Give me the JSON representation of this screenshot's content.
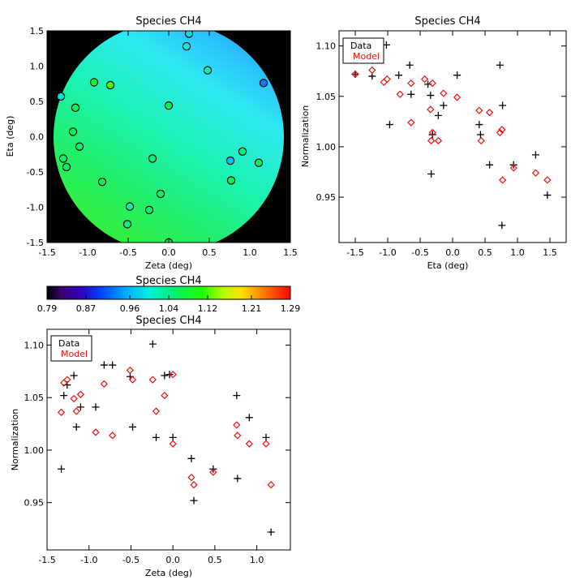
{
  "chart_data": [
    {
      "id": "map",
      "type": "heatmap",
      "title": "Species CH4",
      "xlabel": "Zeta (deg)",
      "ylabel": "Eta (deg)",
      "xlim": [
        -1.5,
        1.5
      ],
      "ylim": [
        -1.5,
        1.5
      ],
      "xticks": [
        -1.5,
        -1.0,
        -0.5,
        0.0,
        0.5,
        1.0,
        1.5
      ],
      "xtick_labels": [
        "-1.5",
        "-1.0",
        "-0.5",
        "0.0",
        "0.5",
        "1.0",
        "1.5"
      ],
      "yticks": [
        -1.5,
        -1.0,
        -0.5,
        0.0,
        0.5,
        1.0,
        1.5
      ],
      "ytick_labels": [
        "-1.5",
        "-1.0",
        "-0.5",
        "0.0",
        "0.5",
        "1.0",
        "1.5"
      ],
      "field_radius": 1.45,
      "background_color": "#000000",
      "points": [
        {
          "x": 0.25,
          "y": 1.46,
          "v": 0.99
        },
        {
          "x": 0.22,
          "y": 1.28,
          "v": 1.0
        },
        {
          "x": 1.17,
          "y": 0.76,
          "v": 0.93
        },
        {
          "x": 0.48,
          "y": 0.94,
          "v": 1.02
        },
        {
          "x": -1.33,
          "y": 0.57,
          "v": 0.99
        },
        {
          "x": -0.92,
          "y": 0.77,
          "v": 1.08
        },
        {
          "x": -0.72,
          "y": 0.73,
          "v": 1.12
        },
        {
          "x": -1.15,
          "y": 0.41,
          "v": 1.06
        },
        {
          "x": 0.0,
          "y": 0.44,
          "v": 1.06
        },
        {
          "x": -1.18,
          "y": 0.07,
          "v": 1.06
        },
        {
          "x": -1.1,
          "y": -0.14,
          "v": 1.05
        },
        {
          "x": -1.3,
          "y": -0.31,
          "v": 1.06
        },
        {
          "x": -1.26,
          "y": -0.43,
          "v": 1.06
        },
        {
          "x": -0.2,
          "y": -0.31,
          "v": 1.04
        },
        {
          "x": 0.91,
          "y": -0.21,
          "v": 1.04
        },
        {
          "x": 1.11,
          "y": -0.37,
          "v": 1.05
        },
        {
          "x": 0.76,
          "y": -0.34,
          "v": 0.97
        },
        {
          "x": 0.77,
          "y": -0.62,
          "v": 1.06
        },
        {
          "x": -0.82,
          "y": -0.64,
          "v": 1.06
        },
        {
          "x": -0.1,
          "y": -0.81,
          "v": 1.06
        },
        {
          "x": -0.48,
          "y": -0.99,
          "v": 1.02
        },
        {
          "x": -0.24,
          "y": -1.04,
          "v": 1.05
        },
        {
          "x": -0.51,
          "y": -1.24,
          "v": 1.04
        },
        {
          "x": 0.0,
          "y": -1.5,
          "v": 1.05
        }
      ]
    },
    {
      "id": "colorbar",
      "type": "colorbar",
      "title": "Species CH4",
      "range": [
        0.79,
        1.29
      ],
      "tick_labels": [
        "0.79",
        "0.87",
        "0.96",
        "1.04",
        "1.12",
        "1.21",
        "1.29"
      ],
      "tick_values": [
        0.79,
        0.87,
        0.96,
        1.04,
        1.12,
        1.21,
        1.29
      ]
    },
    {
      "id": "eta",
      "type": "scatter",
      "title": "Species CH4",
      "xlabel": "Eta (deg)",
      "ylabel": "Normalization",
      "xlim": [
        -1.75,
        1.75
      ],
      "ylim": [
        0.905,
        1.115
      ],
      "xticks": [
        -1.5,
        -1.0,
        -0.5,
        0.0,
        0.5,
        1.0,
        1.5
      ],
      "xtick_labels": [
        "-1.5",
        "-1.0",
        "-0.5",
        "0.0",
        "0.5",
        "1.0",
        "1.5"
      ],
      "yticks": [
        0.95,
        1.0,
        1.05,
        1.1
      ],
      "ytick_labels": [
        "0.95",
        "1.00",
        "1.05",
        "1.10"
      ],
      "legend": {
        "position": "top-left",
        "entries": [
          "Data",
          "Model"
        ]
      },
      "series": [
        {
          "name": "Data",
          "color": "#000000",
          "marker": "plus",
          "x": [
            -1.5,
            -1.24,
            -1.02,
            -0.97,
            -0.83,
            -0.66,
            -0.64,
            -0.38,
            -0.34,
            -0.31,
            -0.33,
            -0.31,
            -0.22,
            -0.14,
            0.07,
            0.41,
            0.43,
            0.57,
            0.73,
            0.77,
            0.76,
            0.94,
            1.28,
            1.46
          ],
          "y": [
            1.072,
            1.07,
            1.101,
            1.022,
            1.071,
            1.081,
            1.052,
            1.062,
            1.051,
            1.012,
            0.973,
            1.012,
            1.031,
            1.041,
            1.071,
            1.022,
            1.012,
            0.982,
            1.081,
            1.041,
            0.922,
            0.982,
            0.992,
            0.952
          ]
        },
        {
          "name": "Model",
          "color": "#ee1111",
          "marker": "diamond",
          "x": [
            -1.5,
            -1.24,
            -1.06,
            -1.01,
            -0.81,
            -0.64,
            -0.64,
            -0.43,
            -0.34,
            -0.31,
            -0.33,
            -0.31,
            -0.22,
            -0.14,
            0.07,
            0.41,
            0.44,
            0.57,
            0.73,
            0.76,
            0.77,
            0.94,
            1.28,
            1.46
          ],
          "y": [
            1.072,
            1.076,
            1.064,
            1.067,
            1.052,
            1.024,
            1.063,
            1.067,
            1.037,
            1.014,
            1.006,
            1.063,
            1.006,
            1.053,
            1.049,
            1.036,
            1.006,
            1.034,
            1.014,
            1.017,
            0.967,
            0.979,
            0.974,
            0.967
          ]
        }
      ]
    },
    {
      "id": "zeta",
      "type": "scatter",
      "title": "Species CH4",
      "xlabel": "Zeta (deg)",
      "ylabel": "Normalization",
      "xlim": [
        -1.5,
        1.4
      ],
      "ylim": [
        0.905,
        1.115
      ],
      "xticks": [
        -1.5,
        -1.0,
        -0.5,
        0.0,
        0.5,
        1.0
      ],
      "xtick_labels": [
        "-1.5",
        "-1.0",
        "-0.5",
        "0.0",
        "0.5",
        "1.0"
      ],
      "yticks": [
        0.95,
        1.0,
        1.05,
        1.1
      ],
      "ytick_labels": [
        "0.95",
        "1.00",
        "1.05",
        "1.10"
      ],
      "legend": {
        "position": "top-left",
        "entries": [
          "Data",
          "Model"
        ]
      },
      "series": [
        {
          "name": "Data",
          "color": "#000000",
          "marker": "plus",
          "x": [
            -1.33,
            -1.3,
            -1.26,
            -1.18,
            -1.15,
            -1.1,
            -0.92,
            -0.82,
            -0.72,
            -0.51,
            -0.48,
            -0.24,
            -0.2,
            -0.1,
            -0.04,
            0.0,
            0.22,
            0.25,
            0.48,
            0.76,
            0.77,
            0.91,
            1.11,
            1.17
          ],
          "y": [
            0.982,
            1.052,
            1.062,
            1.071,
            1.022,
            1.041,
            1.041,
            1.081,
            1.081,
            1.07,
            1.022,
            1.101,
            1.012,
            1.071,
            1.072,
            1.012,
            0.992,
            0.952,
            0.982,
            1.052,
            0.973,
            1.031,
            1.012,
            0.922
          ]
        },
        {
          "name": "Model",
          "color": "#ee1111",
          "marker": "diamond",
          "x": [
            -1.33,
            -1.3,
            -1.26,
            -1.18,
            -1.15,
            -1.1,
            -0.92,
            -0.82,
            -0.72,
            -0.51,
            -0.48,
            -0.24,
            -0.2,
            -0.1,
            0.0,
            0.0,
            0.22,
            0.25,
            0.48,
            0.76,
            0.77,
            0.91,
            1.11,
            1.17
          ],
          "y": [
            1.036,
            1.064,
            1.067,
            1.049,
            1.037,
            1.053,
            1.017,
            1.063,
            1.014,
            1.076,
            1.067,
            1.067,
            1.037,
            1.052,
            1.072,
            1.006,
            0.974,
            0.967,
            0.979,
            1.024,
            1.014,
            1.006,
            1.006,
            0.967
          ]
        }
      ]
    }
  ]
}
